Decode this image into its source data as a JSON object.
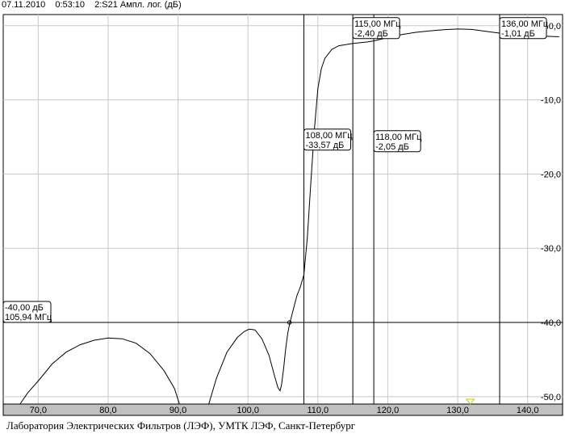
{
  "header": {
    "date": "07.11.2010",
    "time": "0:53:10",
    "trace": "2:S21 Ампл. лог. (дБ)"
  },
  "footer": {
    "text": "Лаборатория Электрических Фильтров (ЛЭФ), УМТК ЛЭФ, Санкт-Петербург"
  },
  "colors": {
    "background": "#ffffff",
    "grid": "#c8c8c8",
    "trace": "#000000",
    "axis_bar": "#c0c0c0",
    "marker_triangle": "#c8c800"
  },
  "chart_data": {
    "type": "line",
    "title": "",
    "xlabel": "",
    "ylabel": "",
    "xlim": [
      65,
      145
    ],
    "ylim": [
      -51,
      1.5
    ],
    "x_ticks": [
      70,
      80,
      90,
      100,
      110,
      120,
      130,
      140
    ],
    "x_tick_labels": [
      "70,0",
      "80,0",
      "90,0",
      "100,0",
      "110,0",
      "120,0",
      "130,0",
      "140,0"
    ],
    "y_ticks": [
      0,
      -10,
      -20,
      -30,
      -40,
      -50
    ],
    "y_tick_labels": [
      "0,0",
      "-10,0",
      "-20,0",
      "-30,0",
      "-40,0",
      "-50,0"
    ],
    "grid": true,
    "series": [
      {
        "x": [
          67.4,
          68.5,
          70,
          72,
          74,
          76,
          78,
          80,
          82,
          84,
          86,
          88,
          89.5,
          90.2,
          94.4,
          95.5,
          97,
          98.5,
          99.5,
          100.2,
          101,
          102,
          103,
          103.8,
          104.3,
          104.6,
          104.8,
          105.1,
          105.4,
          105.7,
          106,
          106.5,
          107,
          107.5,
          108,
          108.5,
          109,
          109.5,
          110,
          110.5,
          111,
          112,
          113,
          115,
          117,
          118,
          120,
          122,
          124,
          126,
          128,
          130,
          132,
          134,
          136,
          138,
          140,
          142,
          144.5
        ],
        "y": [
          -51,
          -49.5,
          -47.9,
          -45.6,
          -44,
          -43,
          -42.4,
          -42.1,
          -42.2,
          -42.8,
          -44.2,
          -46.5,
          -48.9,
          -51,
          -51,
          -47.5,
          -44,
          -42,
          -41.2,
          -40.9,
          -41,
          -42.2,
          -44.4,
          -47.2,
          -48.8,
          -49.2,
          -48.4,
          -46.2,
          -43.5,
          -41.4,
          -40,
          -38.2,
          -36.4,
          -35.2,
          -33.57,
          -28.5,
          -21,
          -14,
          -8.5,
          -5.8,
          -4.4,
          -3.2,
          -2.7,
          -2.4,
          -2.2,
          -2.05,
          -1.6,
          -1.2,
          -0.9,
          -0.7,
          -0.55,
          -0.45,
          -0.5,
          -0.75,
          -1.01,
          -1.15,
          -1.3,
          -1.4,
          -1.5
        ]
      }
    ],
    "markers": [
      {
        "x": 108,
        "label_freq": "108,00 МГц",
        "label_val": "-33,57 дБ"
      },
      {
        "x": 115,
        "label_freq": "115,00 МГц",
        "label_val": "-2,40 дБ"
      },
      {
        "x": 118,
        "label_freq": "118,00 МГц",
        "label_val": "-2,05 дБ"
      },
      {
        "x": 136,
        "label_freq": "136,00 МГц",
        "label_val": "-1,01 дБ"
      }
    ],
    "level_marker": {
      "y": -40,
      "x": 105.94,
      "label_level": "-40,00 дБ",
      "label_freq": "105,94 МГц"
    },
    "triangle_marker_x": 131.8
  }
}
